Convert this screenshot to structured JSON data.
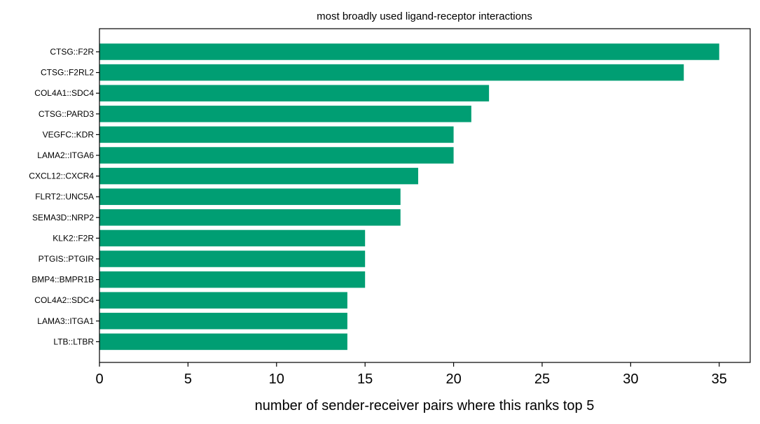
{
  "chart_data": {
    "type": "bar",
    "orientation": "horizontal",
    "title": "most broadly used ligand-receptor interactions",
    "xlabel": "number of sender-receiver pairs where this ranks top 5",
    "ylabel": "",
    "xlim": [
      0,
      36.75
    ],
    "xticks": [
      0,
      5,
      10,
      15,
      20,
      25,
      30,
      35
    ],
    "grid": false,
    "bar_color": "#009E73",
    "categories": [
      "CTSG::F2R",
      "CTSG::F2RL2",
      "COL4A1::SDC4",
      "CTSG::PARD3",
      "VEGFC::KDR",
      "LAMA2::ITGA6",
      "CXCL12::CXCR4",
      "FLRT2::UNC5A",
      "SEMA3D::NRP2",
      "KLK2::F2R",
      "PTGIS::PTGIR",
      "BMP4::BMPR1B",
      "COL4A2::SDC4",
      "LAMA3::ITGA1",
      "LTB::LTBR"
    ],
    "values": [
      35,
      33,
      22,
      21,
      20,
      20,
      18,
      17,
      17,
      15,
      15,
      15,
      14,
      14,
      14
    ]
  }
}
